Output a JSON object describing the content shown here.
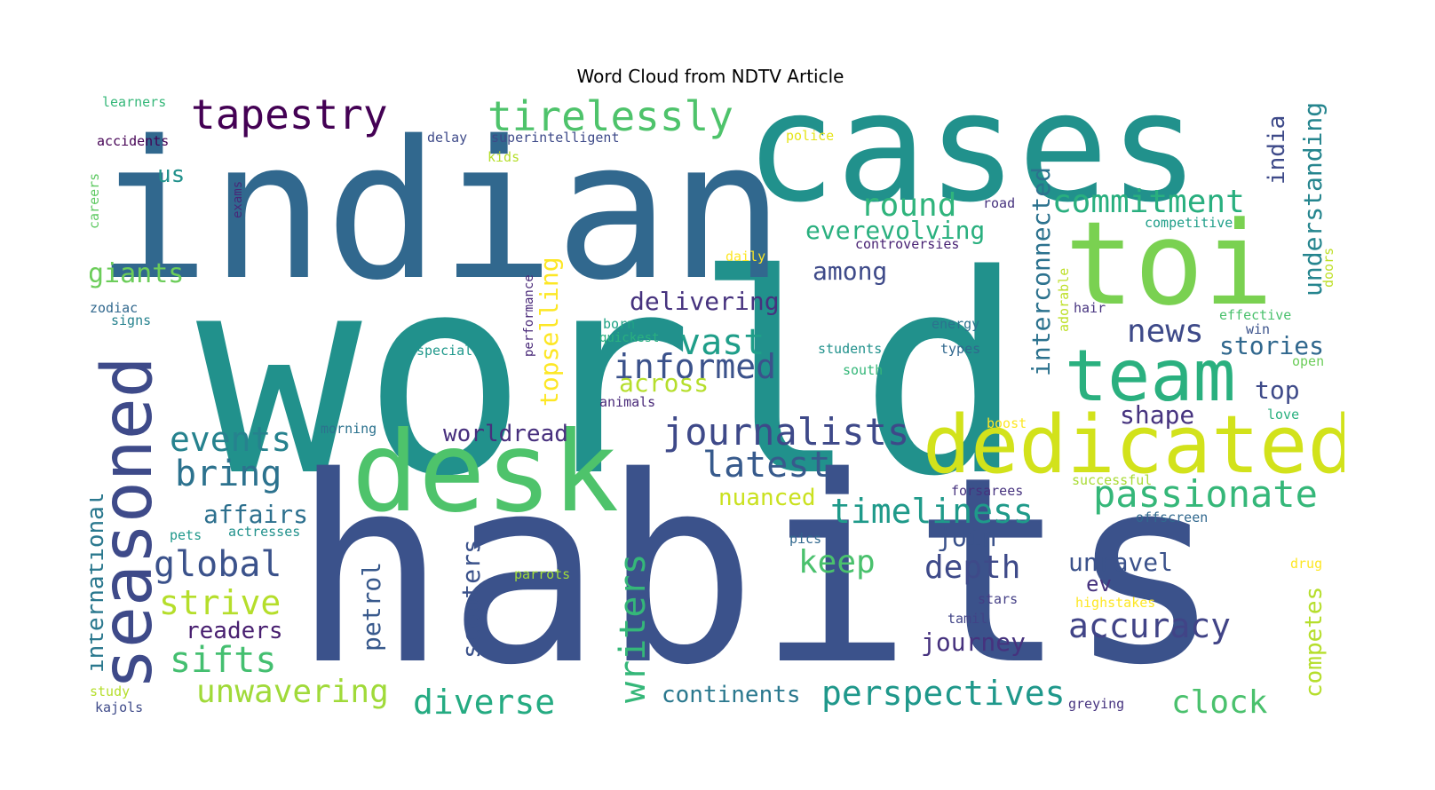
{
  "title": "Word Cloud from NDTV Article",
  "palette": "viridis",
  "words": [
    {
      "text": "world",
      "color": "#21918c"
    },
    {
      "text": "habits",
      "color": "#3b528b"
    },
    {
      "text": "indian",
      "color": "#31688e"
    },
    {
      "text": "cases",
      "color": "#21918c"
    },
    {
      "text": "desk",
      "color": "#4ec36b"
    },
    {
      "text": "toi",
      "color": "#7ad151"
    },
    {
      "text": "dedicated",
      "color": "#d2e21b"
    },
    {
      "text": "seasoned",
      "color": "#3e4a89"
    },
    {
      "text": "team",
      "color": "#2ab07f"
    },
    {
      "text": "tirelessly",
      "color": "#4ec36b"
    },
    {
      "text": "tapestry",
      "color": "#440154"
    },
    {
      "text": "journalists",
      "color": "#3e4989"
    },
    {
      "text": "passionate",
      "color": "#35b779"
    },
    {
      "text": "latest",
      "color": "#375a8c"
    },
    {
      "text": "commitment",
      "color": "#29af7f"
    },
    {
      "text": "events",
      "color": "#26828e"
    },
    {
      "text": "bring",
      "color": "#2c728e"
    },
    {
      "text": "global",
      "color": "#3b528b"
    },
    {
      "text": "timeliness",
      "color": "#1f9a8a"
    },
    {
      "text": "perspectives",
      "color": "#1f988b"
    },
    {
      "text": "diverse",
      "color": "#25ab82"
    },
    {
      "text": "writers",
      "color": "#35b779"
    },
    {
      "text": "vast",
      "color": "#1f9e89"
    },
    {
      "text": "informed",
      "color": "#3b528b"
    },
    {
      "text": "news",
      "color": "#3e4a89"
    },
    {
      "text": "accuracy",
      "color": "#414487"
    },
    {
      "text": "sifts",
      "color": "#44bf70"
    },
    {
      "text": "strive",
      "color": "#b5de2b"
    },
    {
      "text": "unwavering",
      "color": "#a0da39"
    },
    {
      "text": "clock",
      "color": "#4ac16d"
    },
    {
      "text": "depth",
      "color": "#3e4a89"
    },
    {
      "text": "keep",
      "color": "#4ac16d"
    },
    {
      "text": "round",
      "color": "#2fb47c"
    },
    {
      "text": "everevolving",
      "color": "#2ab07f"
    },
    {
      "text": "interconnected",
      "color": "#2c728e"
    },
    {
      "text": "understanding",
      "color": "#25858e"
    },
    {
      "text": "topselling",
      "color": "#fde725"
    },
    {
      "text": "scooters",
      "color": "#3b528b"
    },
    {
      "text": "petrol",
      "color": "#38598c"
    },
    {
      "text": "international",
      "color": "#2a788e"
    },
    {
      "text": "competes",
      "color": "#b5de2b"
    },
    {
      "text": "india",
      "color": "#3e4a89"
    },
    {
      "text": "giants",
      "color": "#6ccd5a"
    },
    {
      "text": "affairs",
      "color": "#2d708e"
    },
    {
      "text": "readers",
      "color": "#481f70"
    },
    {
      "text": "worldread",
      "color": "#472f7d"
    },
    {
      "text": "delivering",
      "color": "#46327e"
    },
    {
      "text": "across",
      "color": "#b5de2b"
    },
    {
      "text": "among",
      "color": "#3e4a89"
    },
    {
      "text": "stories",
      "color": "#31688e"
    },
    {
      "text": "top",
      "color": "#3e4a89"
    },
    {
      "text": "shape",
      "color": "#46337f"
    },
    {
      "text": "journey",
      "color": "#46327e"
    },
    {
      "text": "continents",
      "color": "#2a788e"
    },
    {
      "text": "unravel",
      "color": "#3b528b"
    },
    {
      "text": "join",
      "color": "#3b528b"
    },
    {
      "text": "ev",
      "color": "#46327e"
    },
    {
      "text": "nuanced",
      "color": "#cae11f"
    },
    {
      "text": "us",
      "color": "#21918c"
    },
    {
      "text": "learners",
      "color": "#35b779"
    },
    {
      "text": "accidents",
      "color": "#440154"
    },
    {
      "text": "delay",
      "color": "#3e4a89"
    },
    {
      "text": "superintelligent",
      "color": "#3e4a89"
    },
    {
      "text": "kids",
      "color": "#b5de2b"
    },
    {
      "text": "police",
      "color": "#e5e419"
    },
    {
      "text": "careers",
      "color": "#5ec962"
    },
    {
      "text": "exams",
      "color": "#482878"
    },
    {
      "text": "road",
      "color": "#46327e"
    },
    {
      "text": "competitive",
      "color": "#1f9e89"
    },
    {
      "text": "controversies",
      "color": "#482173"
    },
    {
      "text": "daily",
      "color": "#fde725"
    },
    {
      "text": "adorable",
      "color": "#bddf26"
    },
    {
      "text": "doors",
      "color": "#bddf26"
    },
    {
      "text": "performance",
      "color": "#482878"
    },
    {
      "text": "zodiac",
      "color": "#31688e"
    },
    {
      "text": "signs",
      "color": "#26828e"
    },
    {
      "text": "born",
      "color": "#20a386"
    },
    {
      "text": "quickest",
      "color": "#2ab07f"
    },
    {
      "text": "energy",
      "color": "#2c728e"
    },
    {
      "text": "hair",
      "color": "#46337f"
    },
    {
      "text": "effective",
      "color": "#4ac16d"
    },
    {
      "text": "win",
      "color": "#3b528b"
    },
    {
      "text": "special",
      "color": "#1f988b"
    },
    {
      "text": "students",
      "color": "#21918c"
    },
    {
      "text": "types",
      "color": "#31688e"
    },
    {
      "text": "south",
      "color": "#35b779"
    },
    {
      "text": "open",
      "color": "#6ccd5a"
    },
    {
      "text": "animals",
      "color": "#482878"
    },
    {
      "text": "morning",
      "color": "#2c728e"
    },
    {
      "text": "boost",
      "color": "#fde725"
    },
    {
      "text": "love",
      "color": "#2ab07f"
    },
    {
      "text": "forsarees",
      "color": "#46327e"
    },
    {
      "text": "successful",
      "color": "#a8db34"
    },
    {
      "text": "offscreen",
      "color": "#31688e"
    },
    {
      "text": "pics",
      "color": "#31688e"
    },
    {
      "text": "pets",
      "color": "#1f988b"
    },
    {
      "text": "actresses",
      "color": "#21918c"
    },
    {
      "text": "parrots",
      "color": "#a0da39"
    },
    {
      "text": "drug",
      "color": "#fde725"
    },
    {
      "text": "stars",
      "color": "#433e85"
    },
    {
      "text": "highstakes",
      "color": "#fde725"
    },
    {
      "text": "tamil",
      "color": "#414487"
    },
    {
      "text": "study",
      "color": "#b5de2b"
    },
    {
      "text": "kajols",
      "color": "#3e4a89"
    },
    {
      "text": "greying",
      "color": "#46337f"
    }
  ]
}
